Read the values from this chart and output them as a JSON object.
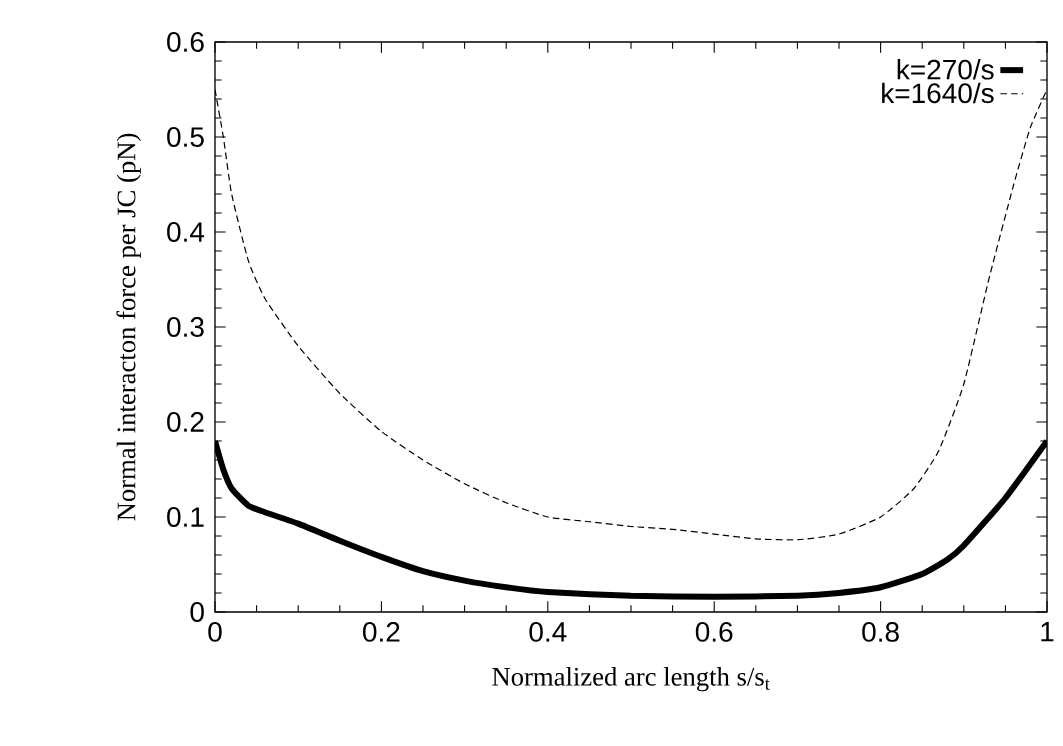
{
  "chart_data": {
    "type": "line",
    "xlabel": "Normalized arc length s/s$_{t}$",
    "ylabel": "Normal interacton force per JC (pN)",
    "xlim": [
      0,
      1
    ],
    "ylim": [
      0,
      0.6
    ],
    "xticks": [
      0,
      0.2,
      0.4,
      0.6,
      0.8,
      1
    ],
    "yticks": [
      0,
      0.1,
      0.2,
      0.3,
      0.4,
      0.5,
      0.6
    ],
    "legend": "top right",
    "series": [
      {
        "name": "k=270/s",
        "color": "#000000",
        "line_style": "solid",
        "x": [
          0,
          0.01,
          0.02,
          0.04,
          0.06,
          0.1,
          0.15,
          0.2,
          0.25,
          0.3,
          0.35,
          0.4,
          0.5,
          0.6,
          0.7,
          0.75,
          0.8,
          0.85,
          0.88,
          0.9,
          0.95,
          1
        ],
        "values": [
          0.18,
          0.15,
          0.13,
          0.112,
          0.105,
          0.093,
          0.075,
          0.058,
          0.043,
          0.033,
          0.026,
          0.021,
          0.017,
          0.016,
          0.017,
          0.02,
          0.026,
          0.04,
          0.055,
          0.07,
          0.12,
          0.18
        ]
      },
      {
        "name": "k=1640/s",
        "color": "#000000",
        "line_style": "dashed",
        "x": [
          0,
          0.01,
          0.02,
          0.04,
          0.06,
          0.1,
          0.15,
          0.2,
          0.25,
          0.3,
          0.35,
          0.4,
          0.45,
          0.5,
          0.55,
          0.6,
          0.65,
          0.7,
          0.75,
          0.8,
          0.84,
          0.87,
          0.9,
          0.93,
          0.96,
          0.98,
          1
        ],
        "values": [
          0.55,
          0.5,
          0.44,
          0.37,
          0.33,
          0.28,
          0.23,
          0.19,
          0.16,
          0.135,
          0.115,
          0.1,
          0.095,
          0.09,
          0.087,
          0.082,
          0.077,
          0.076,
          0.082,
          0.1,
          0.13,
          0.17,
          0.24,
          0.35,
          0.45,
          0.51,
          0.55
        ]
      }
    ]
  }
}
